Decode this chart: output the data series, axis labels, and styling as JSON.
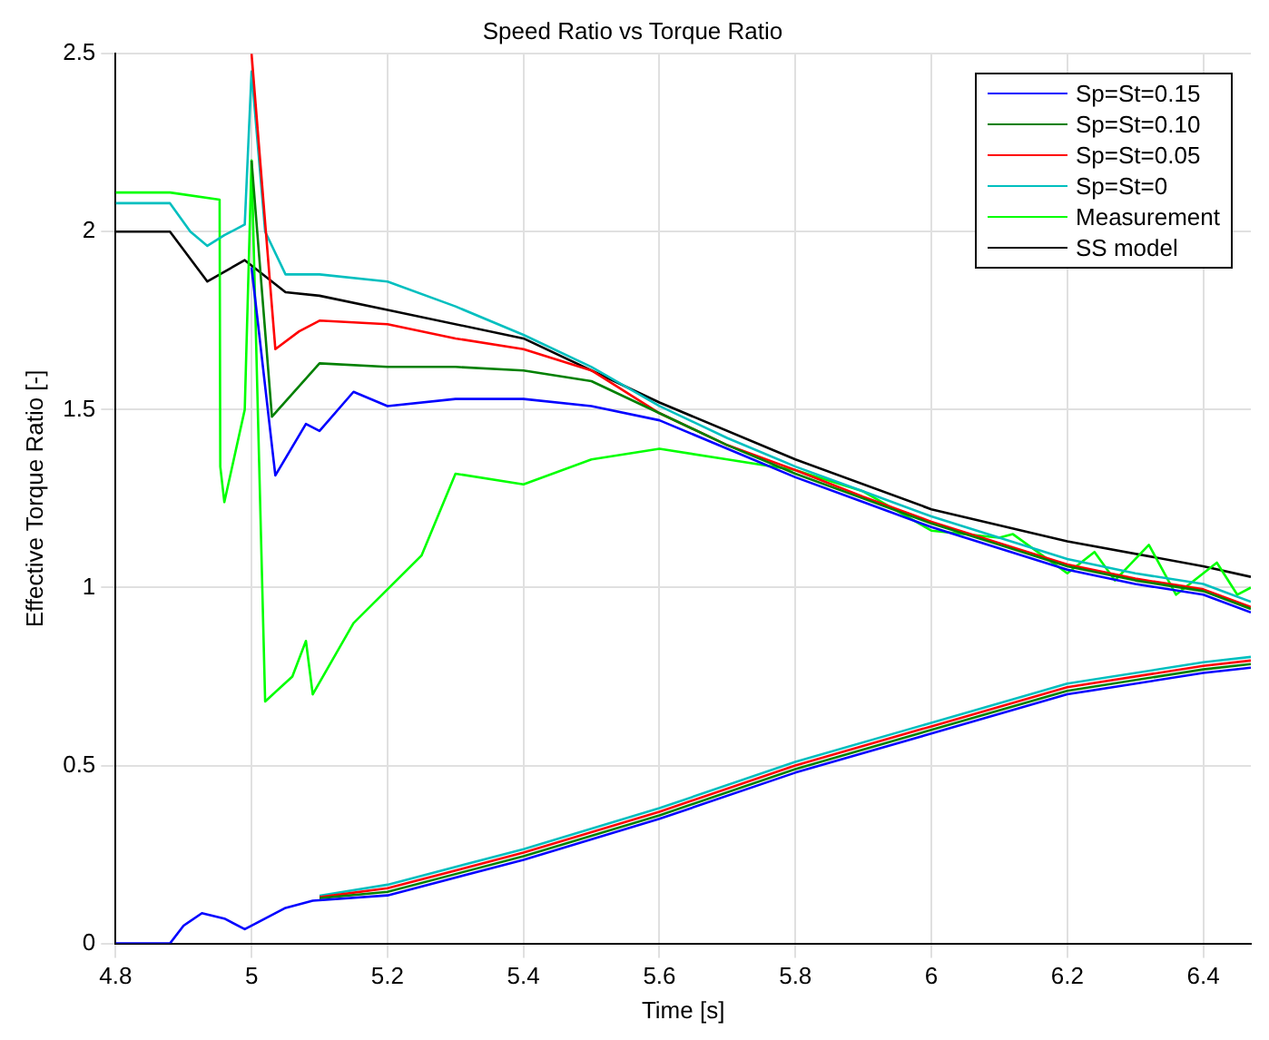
{
  "chart_data": {
    "type": "line",
    "title": "Speed Ratio vs Torque Ratio",
    "xlabel": "Time [s]",
    "ylabel": "Effective Torque Ratio [-]",
    "xlim": [
      4.8,
      6.47
    ],
    "ylim": [
      0,
      2.5
    ],
    "xticks": [
      4.8,
      5,
      5.2,
      5.4,
      5.6,
      5.8,
      6,
      6.2,
      6.4
    ],
    "yticks": [
      0,
      0.5,
      1,
      1.5,
      2,
      2.5
    ],
    "grid": true,
    "legend": "top right",
    "marker": "none",
    "line_style": "solid",
    "series": [
      {
        "name": "Sp=St=0.15",
        "color": "#0000ff",
        "x": [
          5.0,
          5.035,
          5.08,
          5.1,
          5.15,
          5.2,
          5.3,
          5.4,
          5.5,
          5.6,
          5.7,
          5.8,
          5.9,
          6.0,
          6.1,
          6.2,
          6.3,
          6.4,
          6.47,
          null,
          4.8,
          4.88,
          4.9,
          4.927,
          4.96,
          4.99,
          5.02,
          5.05,
          5.09,
          5.2,
          5.4,
          5.6,
          5.8,
          6.0,
          6.2,
          6.4,
          6.47
        ],
        "values": [
          1.9,
          1.315,
          1.46,
          1.44,
          1.55,
          1.51,
          1.53,
          1.53,
          1.51,
          1.47,
          1.39,
          1.31,
          1.24,
          1.17,
          1.11,
          1.05,
          1.01,
          0.98,
          0.93,
          null,
          0,
          0,
          0.05,
          0.085,
          0.07,
          0.04,
          0.07,
          0.1,
          0.12,
          0.135,
          0.235,
          0.35,
          0.48,
          0.59,
          0.7,
          0.76,
          0.775
        ]
      },
      {
        "name": "Sp=St=0.10",
        "color": "#008000",
        "x": [
          5.0,
          5.03,
          5.1,
          5.2,
          5.3,
          5.4,
          5.5,
          5.6,
          5.7,
          5.8,
          5.9,
          6.0,
          6.1,
          6.2,
          6.3,
          6.4,
          6.47,
          null,
          5.1,
          5.2,
          5.4,
          5.6,
          5.8,
          6.0,
          6.2,
          6.4,
          6.47
        ],
        "values": [
          2.2,
          1.48,
          1.63,
          1.62,
          1.62,
          1.61,
          1.58,
          1.49,
          1.4,
          1.32,
          1.25,
          1.18,
          1.12,
          1.06,
          1.02,
          0.99,
          0.94,
          null,
          0.127,
          0.145,
          0.245,
          0.36,
          0.49,
          0.6,
          0.71,
          0.77,
          0.785
        ]
      },
      {
        "name": "Sp=St=0.05",
        "color": "#ff0000",
        "x": [
          5.0,
          5.035,
          5.07,
          5.1,
          5.2,
          5.3,
          5.4,
          5.5,
          5.6,
          5.7,
          5.8,
          5.9,
          6.0,
          6.1,
          6.2,
          6.3,
          6.4,
          6.47,
          null,
          5.1,
          5.2,
          5.4,
          5.6,
          5.8,
          6.0,
          6.2,
          6.4,
          6.47
        ],
        "values": [
          2.5,
          1.67,
          1.72,
          1.75,
          1.74,
          1.7,
          1.67,
          1.61,
          1.49,
          1.4,
          1.33,
          1.255,
          1.185,
          1.125,
          1.065,
          1.025,
          0.995,
          0.945,
          null,
          0.13,
          0.155,
          0.255,
          0.37,
          0.5,
          0.61,
          0.72,
          0.78,
          0.795
        ]
      },
      {
        "name": "Sp=St=0",
        "color": "#00bfbf",
        "x": [
          4.8,
          4.88,
          4.91,
          4.935,
          4.96,
          4.99,
          5.0,
          5.02,
          5.05,
          5.1,
          5.2,
          5.3,
          5.4,
          5.5,
          5.6,
          5.7,
          5.8,
          5.9,
          6.0,
          6.1,
          6.2,
          6.3,
          6.4,
          6.47,
          null,
          5.1,
          5.2,
          5.4,
          5.6,
          5.8,
          6.0,
          6.2,
          6.4,
          6.47
        ],
        "values": [
          2.08,
          2.08,
          2.0,
          1.96,
          1.99,
          2.02,
          2.45,
          2.0,
          1.88,
          1.88,
          1.86,
          1.79,
          1.71,
          1.62,
          1.51,
          1.42,
          1.34,
          1.27,
          1.2,
          1.14,
          1.08,
          1.04,
          1.01,
          0.96,
          null,
          0.134,
          0.165,
          0.265,
          0.38,
          0.51,
          0.62,
          0.73,
          0.79,
          0.805
        ]
      },
      {
        "name": "Measurement",
        "color": "#00ff00",
        "x": [
          4.8,
          4.88,
          4.953,
          4.954,
          4.96,
          4.99,
          5.0,
          5.02,
          5.06,
          5.08,
          5.09,
          5.15,
          5.25,
          5.3,
          5.4,
          5.5,
          5.6,
          5.7,
          5.8,
          5.9,
          6.0,
          6.1,
          6.12,
          6.2,
          6.24,
          6.27,
          6.32,
          6.36,
          6.42,
          6.45,
          6.47
        ],
        "values": [
          2.11,
          2.11,
          2.09,
          1.34,
          1.24,
          1.5,
          2.2,
          0.68,
          0.75,
          0.85,
          0.7,
          0.9,
          1.09,
          1.32,
          1.29,
          1.36,
          1.39,
          1.36,
          1.33,
          1.27,
          1.16,
          1.14,
          1.15,
          1.04,
          1.1,
          1.02,
          1.12,
          0.98,
          1.07,
          0.98,
          1.0
        ]
      },
      {
        "name": "SS model",
        "color": "#000000",
        "x": [
          4.8,
          4.88,
          4.935,
          4.99,
          5.05,
          5.1,
          5.2,
          5.4,
          5.6,
          5.8,
          6.0,
          6.2,
          6.4,
          6.47
        ],
        "values": [
          2.0,
          2.0,
          1.86,
          1.92,
          1.83,
          1.82,
          1.78,
          1.7,
          1.52,
          1.36,
          1.22,
          1.13,
          1.06,
          1.03
        ]
      }
    ]
  }
}
